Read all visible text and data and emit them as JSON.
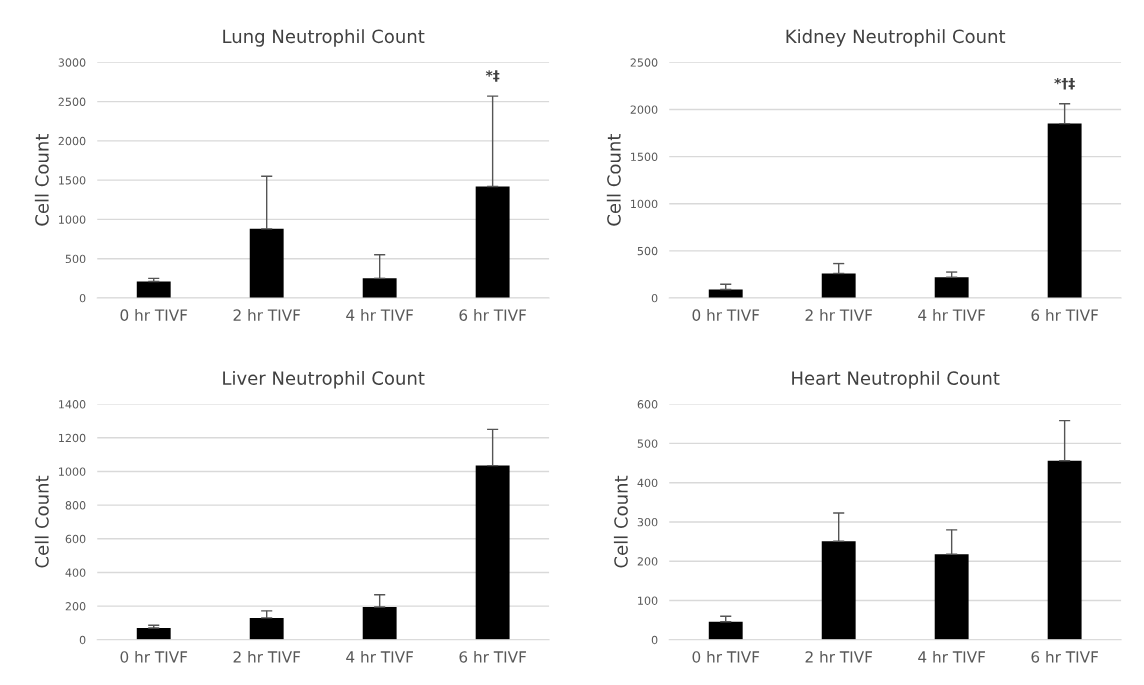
{
  "chart_data": [
    {
      "type": "bar",
      "title": "Lung Neutrophil Count",
      "ylabel": "Cell Count",
      "categories": [
        "0 hr TIVF",
        "2 hr TIVF",
        "4 hr TIVF",
        "6 hr TIVF"
      ],
      "values": [
        210,
        880,
        250,
        1420
      ],
      "errors": [
        [
          210,
          250
        ],
        [
          880,
          1550
        ],
        [
          250,
          550
        ],
        [
          1420,
          2570
        ]
      ],
      "color": "#000000",
      "ylim": [
        0,
        3000
      ],
      "yticks": [
        0,
        500,
        1000,
        1500,
        2000,
        2500,
        3000
      ],
      "grid": "y",
      "annotations": [
        "*‡"
      ]
    },
    {
      "type": "bar",
      "title": "Kidney Neutrophil Count",
      "ylabel": "Cell Count",
      "categories": [
        "0 hr TIVF",
        "2 hr TIVF",
        "4 hr TIVF",
        "6 hr TIVF"
      ],
      "values": [
        90,
        260,
        220,
        1850
      ],
      "errors": [
        [
          90,
          145
        ],
        [
          260,
          365
        ],
        [
          220,
          275
        ],
        [
          1850,
          2060
        ]
      ],
      "color": "#000000",
      "ylim": [
        0,
        2500
      ],
      "yticks": [
        0,
        500,
        1000,
        1500,
        2000,
        2500
      ],
      "grid": "y",
      "annotations": [
        "*†‡"
      ]
    },
    {
      "type": "bar",
      "title": "Liver Neutrophil Count",
      "ylabel": "Cell Count",
      "categories": [
        "0 hr TIVF",
        "2 hr TIVF",
        "4 hr TIVF",
        "6 hr TIVF"
      ],
      "values": [
        70,
        130,
        195,
        1035
      ],
      "errors": [
        [
          70,
          86
        ],
        [
          130,
          172
        ],
        [
          195,
          268
        ],
        [
          1035,
          1250
        ]
      ],
      "color": "#000000",
      "ylim": [
        0,
        1400
      ],
      "yticks": [
        0,
        200,
        400,
        600,
        800,
        1000,
        1200,
        1400
      ],
      "grid": "y"
    },
    {
      "type": "bar",
      "title": "Heart Neutrophil Count",
      "ylabel": "Cell Count",
      "categories": [
        "0 hr TIVF",
        "2 hr TIVF",
        "4 hr TIVF",
        "6 hr TIVF"
      ],
      "values": [
        46,
        251,
        218,
        456
      ],
      "errors": [
        [
          46,
          60
        ],
        [
          251,
          323
        ],
        [
          218,
          280
        ],
        [
          456,
          558
        ]
      ],
      "color": "#000000",
      "ylim": [
        0,
        600
      ],
      "yticks": [
        0,
        100,
        200,
        300,
        400,
        500,
        600
      ],
      "grid": "y"
    }
  ]
}
